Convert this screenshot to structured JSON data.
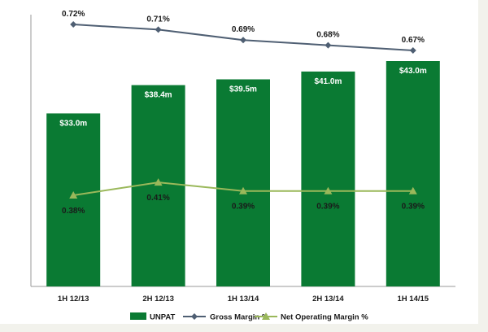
{
  "chart_data": {
    "type": "bar",
    "categories": [
      "1H 12/13",
      "2H 12/13",
      "1H 13/14",
      "2H 13/14",
      "1H 14/15"
    ],
    "series": [
      {
        "name": "UNPAT",
        "kind": "bar",
        "color": "#0a7a33",
        "values": [
          33.0,
          38.4,
          39.5,
          41.0,
          43.0
        ],
        "labels": [
          "$33.0m",
          "$38.4m",
          "$39.5m",
          "$41.0m",
          "$43.0m"
        ]
      },
      {
        "name": "Gross Margin %",
        "kind": "line",
        "marker": "diamond",
        "color": "#4f5f73",
        "values": [
          0.72,
          0.71,
          0.69,
          0.68,
          0.67
        ],
        "labels": [
          "0.72%",
          "0.71%",
          "0.69%",
          "0.68%",
          "0.67%"
        ]
      },
      {
        "name": "Net Operating Margin %",
        "kind": "line",
        "marker": "triangle",
        "color": "#9ab85a",
        "values": [
          0.38,
          0.41,
          0.39,
          0.39,
          0.39
        ],
        "labels": [
          "0.38%",
          "0.41%",
          "0.39%",
          "0.39%",
          "0.39%"
        ]
      }
    ],
    "title": "",
    "xlabel": "",
    "ylabel": "",
    "grid": false,
    "legend_position": "bottom"
  }
}
